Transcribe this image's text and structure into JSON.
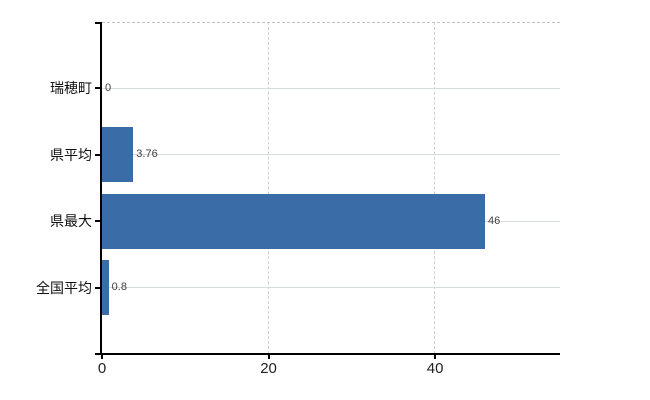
{
  "chart_data": {
    "type": "bar",
    "orientation": "horizontal",
    "title": "",
    "xlabel": "",
    "ylabel": "",
    "categories": [
      "瑞穂町",
      "県平均",
      "県最大",
      "全国平均"
    ],
    "values": [
      0,
      3.76,
      46,
      0.8
    ],
    "value_labels": [
      "0",
      "3.76",
      "46",
      "0.8"
    ],
    "x_ticks": [
      0,
      20,
      40
    ],
    "x_tick_labels": [
      "0",
      "20",
      "40"
    ],
    "xlim": [
      0,
      55
    ],
    "grid": true,
    "legend": false,
    "bar_color": "#3a6ca8",
    "axis_color": "#000000",
    "h_gridline_color": "#d6dcd6",
    "v_gridline_color": "#cfcfcf",
    "top_border_color": "#c3c3c3",
    "value_label_color": "#3f3f3f",
    "tick_label_color": "#222222",
    "category_label_color": "#111111"
  }
}
